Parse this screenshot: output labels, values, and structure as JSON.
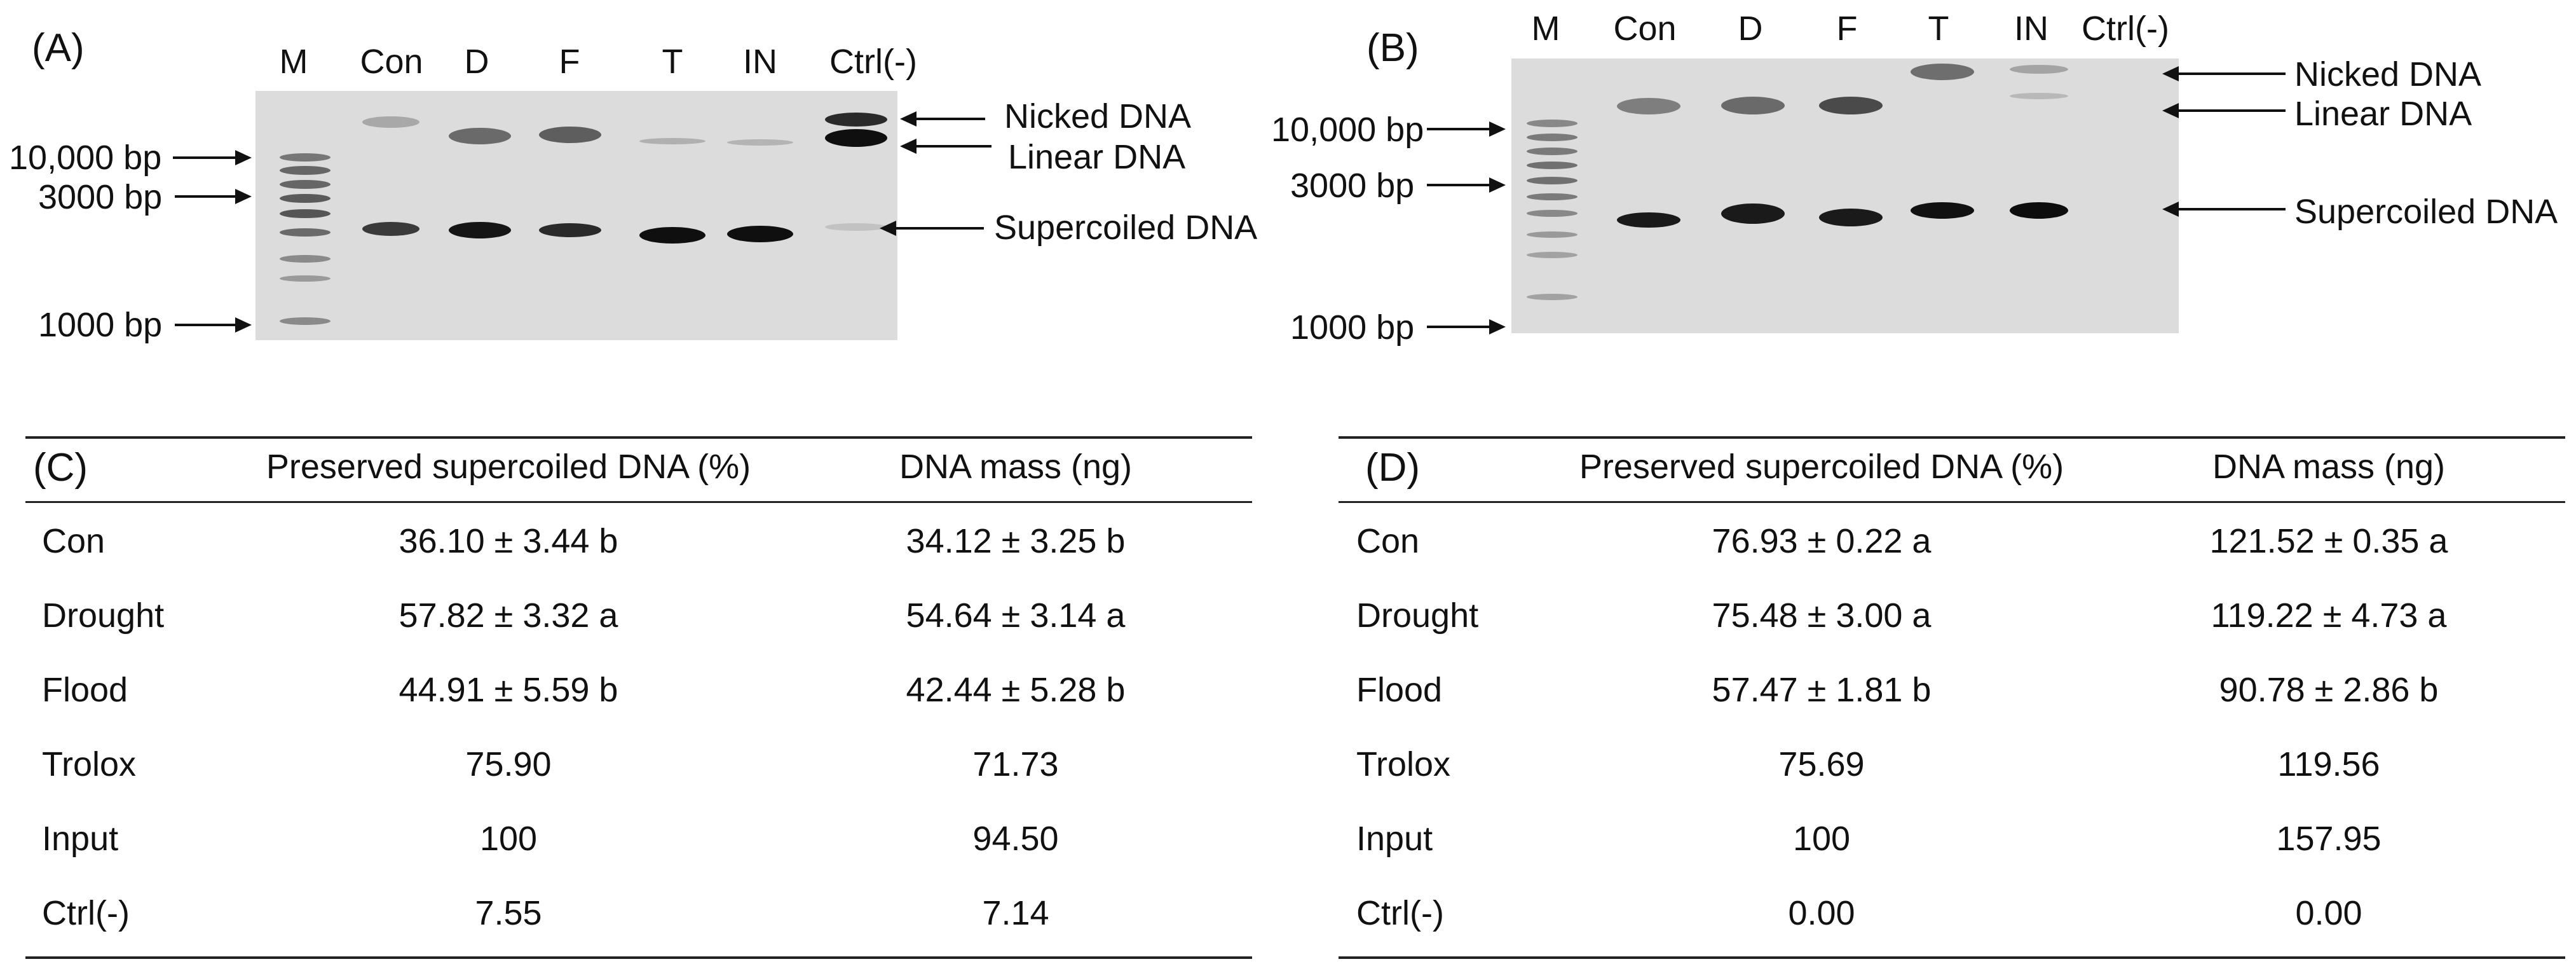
{
  "panels": {
    "A": "(A)",
    "B": "(B)",
    "C": "(C)",
    "D": "(D)"
  },
  "gel_A": {
    "lanes": [
      "M",
      "Con",
      "D",
      "F",
      "T",
      "IN",
      "Ctrl(-)"
    ],
    "markers": [
      "10,000 bp",
      "3000 bp",
      "1000 bp"
    ],
    "forms": [
      "Nicked DNA",
      "Linear DNA",
      "Supercoiled DNA"
    ]
  },
  "gel_B": {
    "lanes": [
      "M",
      "Con",
      "D",
      "F",
      "T",
      "IN",
      "Ctrl(-)"
    ],
    "markers": [
      "10,000 bp",
      "3000 bp",
      "1000 bp"
    ],
    "forms": [
      "Nicked DNA",
      "Linear DNA",
      "Supercoiled DNA"
    ]
  },
  "table_C": {
    "headers": [
      "Preserved supercoiled DNA (%)",
      "DNA mass (ng)"
    ],
    "rows": [
      [
        "Con",
        "36.10 ± 3.44 b",
        "34.12 ± 3.25 b"
      ],
      [
        "Drought",
        "57.82 ± 3.32 a",
        "54.64 ± 3.14 a"
      ],
      [
        "Flood",
        "44.91 ± 5.59 b",
        "42.44 ± 5.28 b"
      ],
      [
        "Trolox",
        "75.90",
        "71.73"
      ],
      [
        "Input",
        "100",
        "94.50"
      ],
      [
        "Ctrl(-)",
        "7.55",
        "7.14"
      ]
    ]
  },
  "table_D": {
    "headers": [
      "Preserved supercoiled DNA (%)",
      "DNA mass (ng)"
    ],
    "rows": [
      [
        "Con",
        "76.93 ± 0.22 a",
        "121.52 ± 0.35 a"
      ],
      [
        "Drought",
        "75.48 ± 3.00 a",
        "119.22 ± 4.73 a"
      ],
      [
        "Flood",
        "57.47 ± 1.81 b",
        "90.78 ± 2.86 b"
      ],
      [
        "Trolox",
        "75.69",
        "119.56"
      ],
      [
        "Input",
        "100",
        "157.95"
      ],
      [
        "Ctrl(-)",
        "0.00",
        "0.00"
      ]
    ]
  }
}
